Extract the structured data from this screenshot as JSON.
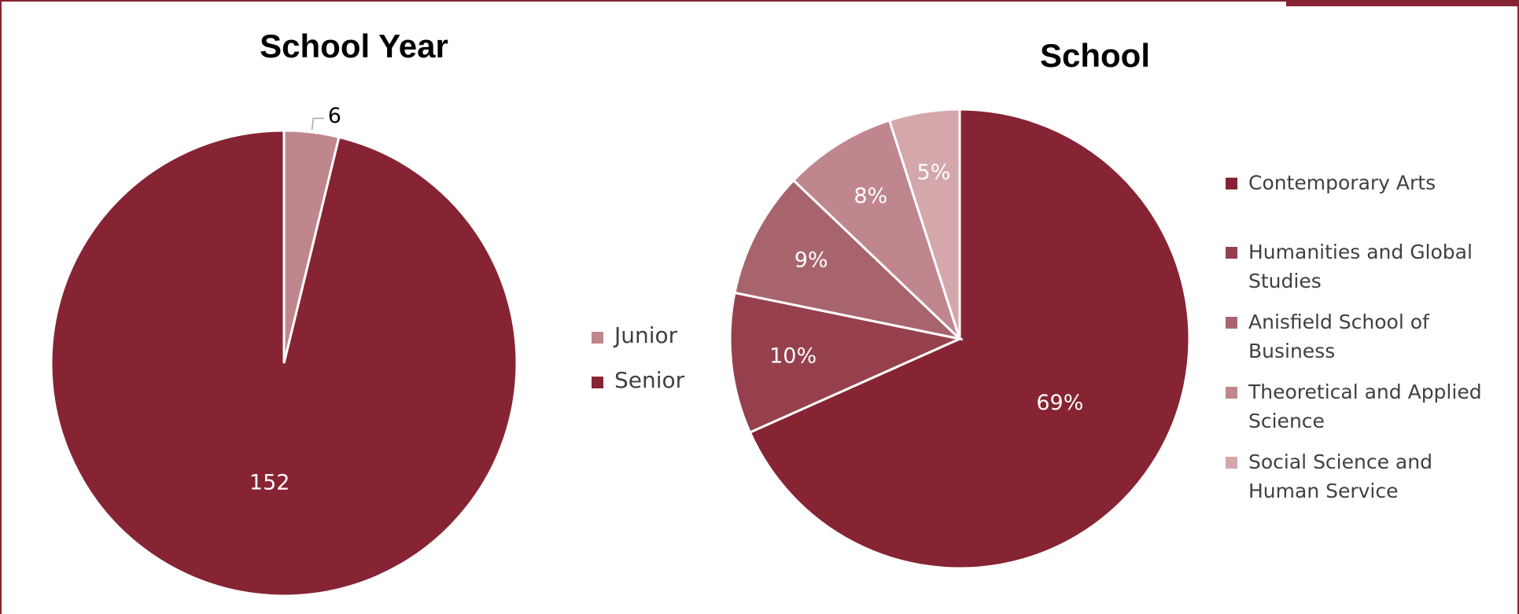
{
  "chart_data": [
    {
      "type": "pie",
      "title": "School Year",
      "categories": [
        "Junior",
        "Senior"
      ],
      "values": [
        6,
        152
      ],
      "colors": [
        "#c0868e",
        "#862433"
      ]
    },
    {
      "type": "pie",
      "title": "School",
      "categories": [
        "Contemporary Arts",
        "Humanities and Global Studies",
        "Anisfield School of Business",
        "Theoretical and Applied Science",
        "Social Science and Human Service"
      ],
      "values": [
        69,
        10,
        9,
        8,
        5
      ],
      "value_labels": [
        "69%",
        "10%",
        "9%",
        "8%",
        "5%"
      ],
      "colors": [
        "#862433",
        "#96404e",
        "#a8646c",
        "#c0868e",
        "#d4a7ab"
      ]
    }
  ]
}
